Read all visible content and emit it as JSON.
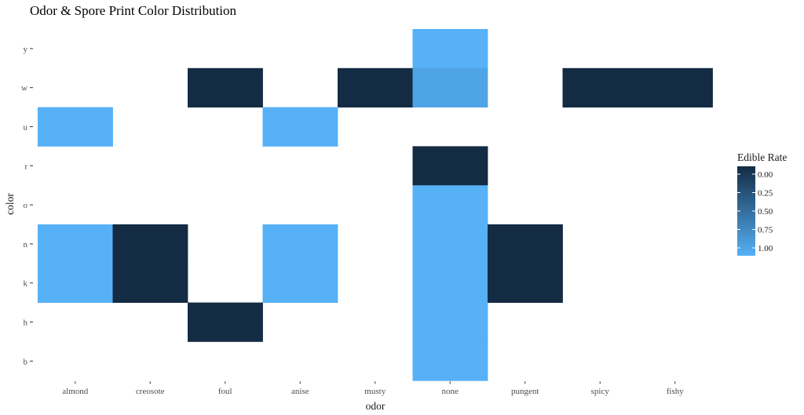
{
  "chart_data": {
    "type": "heatmap",
    "title": "Odor & Spore Print Color Distribution",
    "xlabel": "odor",
    "ylabel": "color",
    "x_categories": [
      "almond",
      "creosote",
      "foul",
      "anise",
      "musty",
      "none",
      "pungent",
      "spicy",
      "fishy"
    ],
    "y_categories": [
      "b",
      "h",
      "k",
      "n",
      "o",
      "r",
      "u",
      "w",
      "y"
    ],
    "cells": [
      {
        "x": "none",
        "y": "y",
        "value": 1.0
      },
      {
        "x": "foul",
        "y": "w",
        "value": 0.0
      },
      {
        "x": "musty",
        "y": "w",
        "value": 0.0
      },
      {
        "x": "none",
        "y": "w",
        "value": 0.9
      },
      {
        "x": "spicy",
        "y": "w",
        "value": 0.0
      },
      {
        "x": "fishy",
        "y": "w",
        "value": 0.0
      },
      {
        "x": "almond",
        "y": "u",
        "value": 1.0
      },
      {
        "x": "anise",
        "y": "u",
        "value": 1.0
      },
      {
        "x": "none",
        "y": "r",
        "value": 0.0
      },
      {
        "x": "none",
        "y": "o",
        "value": 1.0
      },
      {
        "x": "almond",
        "y": "n",
        "value": 1.0
      },
      {
        "x": "creosote",
        "y": "n",
        "value": 0.0
      },
      {
        "x": "anise",
        "y": "n",
        "value": 1.0
      },
      {
        "x": "none",
        "y": "n",
        "value": 1.0
      },
      {
        "x": "pungent",
        "y": "n",
        "value": 0.0
      },
      {
        "x": "almond",
        "y": "k",
        "value": 1.0
      },
      {
        "x": "creosote",
        "y": "k",
        "value": 0.0
      },
      {
        "x": "anise",
        "y": "k",
        "value": 1.0
      },
      {
        "x": "none",
        "y": "k",
        "value": 1.0
      },
      {
        "x": "pungent",
        "y": "k",
        "value": 0.0
      },
      {
        "x": "foul",
        "y": "h",
        "value": 0.0
      },
      {
        "x": "none",
        "y": "h",
        "value": 1.0
      },
      {
        "x": "none",
        "y": "b",
        "value": 1.0
      }
    ],
    "legend": {
      "title": "Edible Rate",
      "breaks": [
        "0.00",
        "0.25",
        "0.50",
        "0.75",
        "1.00"
      ],
      "placement": "right"
    },
    "color_low": "#132b43",
    "color_high": "#56b1f7",
    "grid": false
  }
}
